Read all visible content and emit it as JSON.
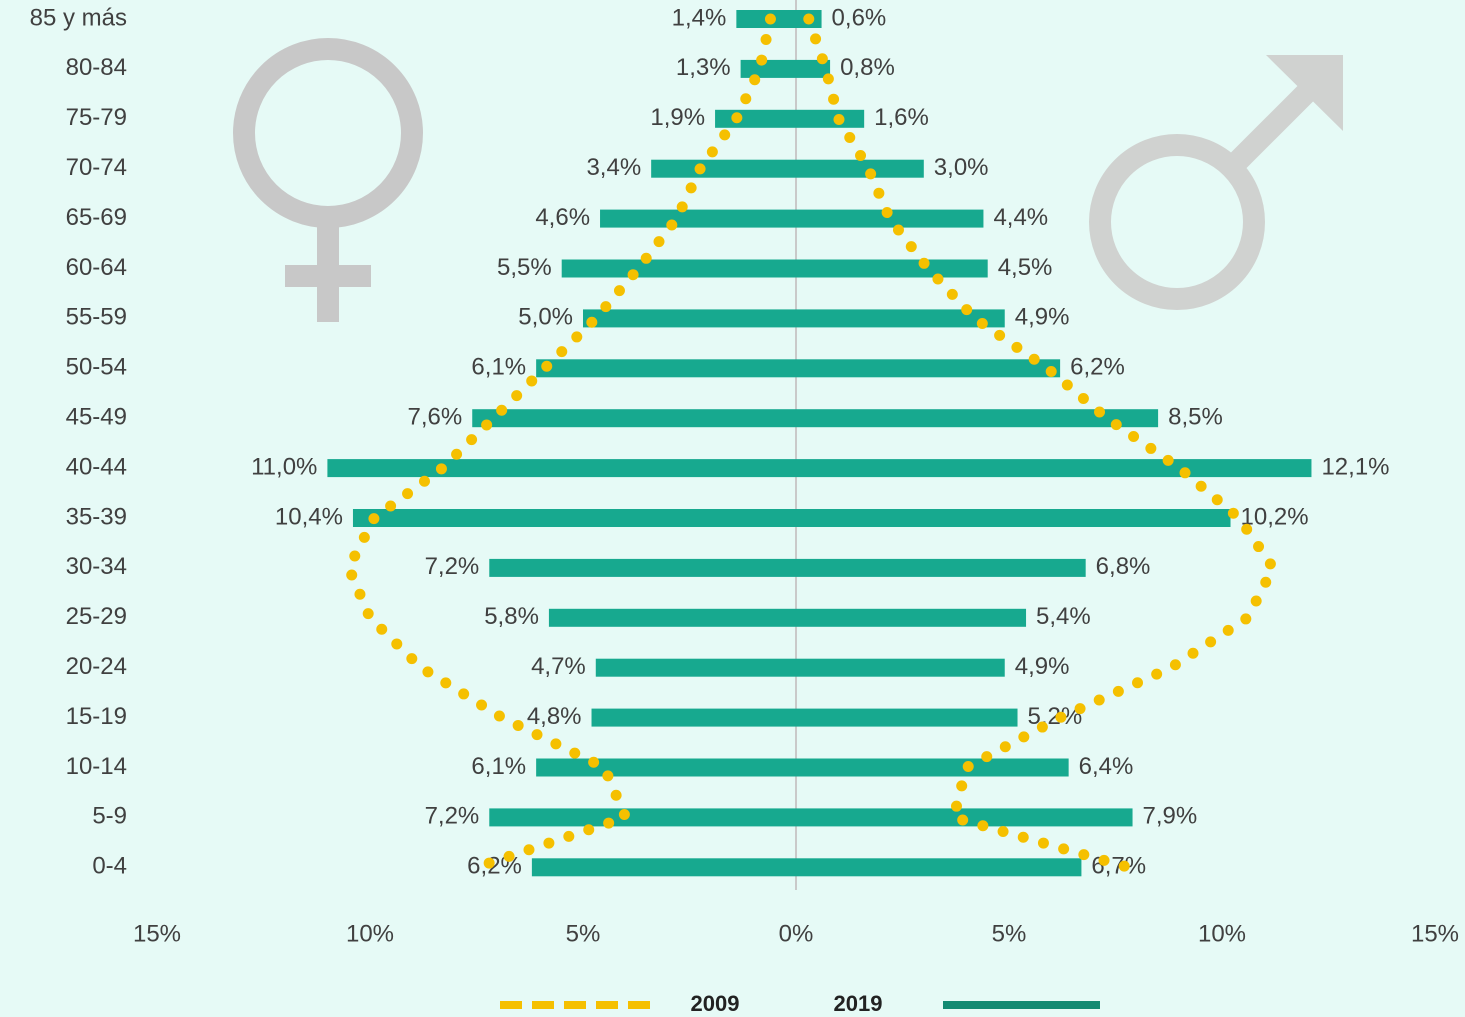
{
  "chart_data": {
    "type": "pyramid",
    "categories": [
      "85 y más",
      "80-84",
      "75-79",
      "70-74",
      "65-69",
      "60-64",
      "55-59",
      "50-54",
      "45-49",
      "40-44",
      "35-39",
      "30-34",
      "25-29",
      "20-24",
      "15-19",
      "10-14",
      "5-9",
      "0-4"
    ],
    "series": [
      {
        "name": "2009",
        "color": "#f5c000",
        "style": "dotted",
        "left": [
          0.6,
          0.85,
          1.4,
          2.25,
          2.8,
          3.7,
          4.7,
          5.9,
          7.1,
          8.3,
          9.9,
          10.5,
          10.0,
          8.8,
          6.9,
          4.5,
          4.0,
          7.5
        ],
        "right": [
          0.3,
          0.7,
          1.0,
          1.7,
          2.2,
          3.1,
          4.2,
          5.9,
          7.3,
          9.0,
          10.4,
          11.2,
          10.6,
          8.8,
          6.2,
          4.0,
          3.7,
          7.8
        ]
      },
      {
        "name": "2019",
        "color": "#17a98f",
        "style": "bar",
        "left": [
          1.4,
          1.3,
          1.9,
          3.4,
          4.6,
          5.5,
          5.0,
          6.1,
          7.6,
          11.0,
          10.4,
          7.2,
          5.8,
          4.7,
          4.8,
          6.1,
          7.2,
          6.2
        ],
        "left_labels": [
          "1,4%",
          "1,3%",
          "1,9%",
          "3,4%",
          "4,6%",
          "5,5%",
          "5,0%",
          "6,1%",
          "7,6%",
          "11,0%",
          "10,4%",
          "7,2%",
          "5,8%",
          "4,7%",
          "4,8%",
          "6,1%",
          "7,2%",
          "6,2%"
        ],
        "right": [
          0.6,
          0.8,
          1.6,
          3.0,
          4.4,
          4.5,
          4.9,
          6.2,
          8.5,
          12.1,
          10.2,
          6.8,
          5.4,
          4.9,
          5.2,
          6.4,
          7.9,
          6.7
        ],
        "right_labels": [
          "0,6%",
          "0,8%",
          "1,6%",
          "3,0%",
          "4,4%",
          "4,5%",
          "4,9%",
          "6,2%",
          "8,5%",
          "12,1%",
          "10,2%",
          "6,8%",
          "5,4%",
          "4,9%",
          "5,2%",
          "6,4%",
          "7,9%",
          "6,7%"
        ]
      }
    ],
    "xlim": [
      -15,
      15
    ],
    "xticks": [
      {
        "value": -15,
        "label": "15%"
      },
      {
        "value": -10,
        "label": "10%"
      },
      {
        "value": -5,
        "label": "5%"
      },
      {
        "value": 0,
        "label": "0%"
      },
      {
        "value": 5,
        "label": "5%"
      },
      {
        "value": 10,
        "label": "10%"
      },
      {
        "value": 15,
        "label": "15%"
      }
    ]
  }
}
